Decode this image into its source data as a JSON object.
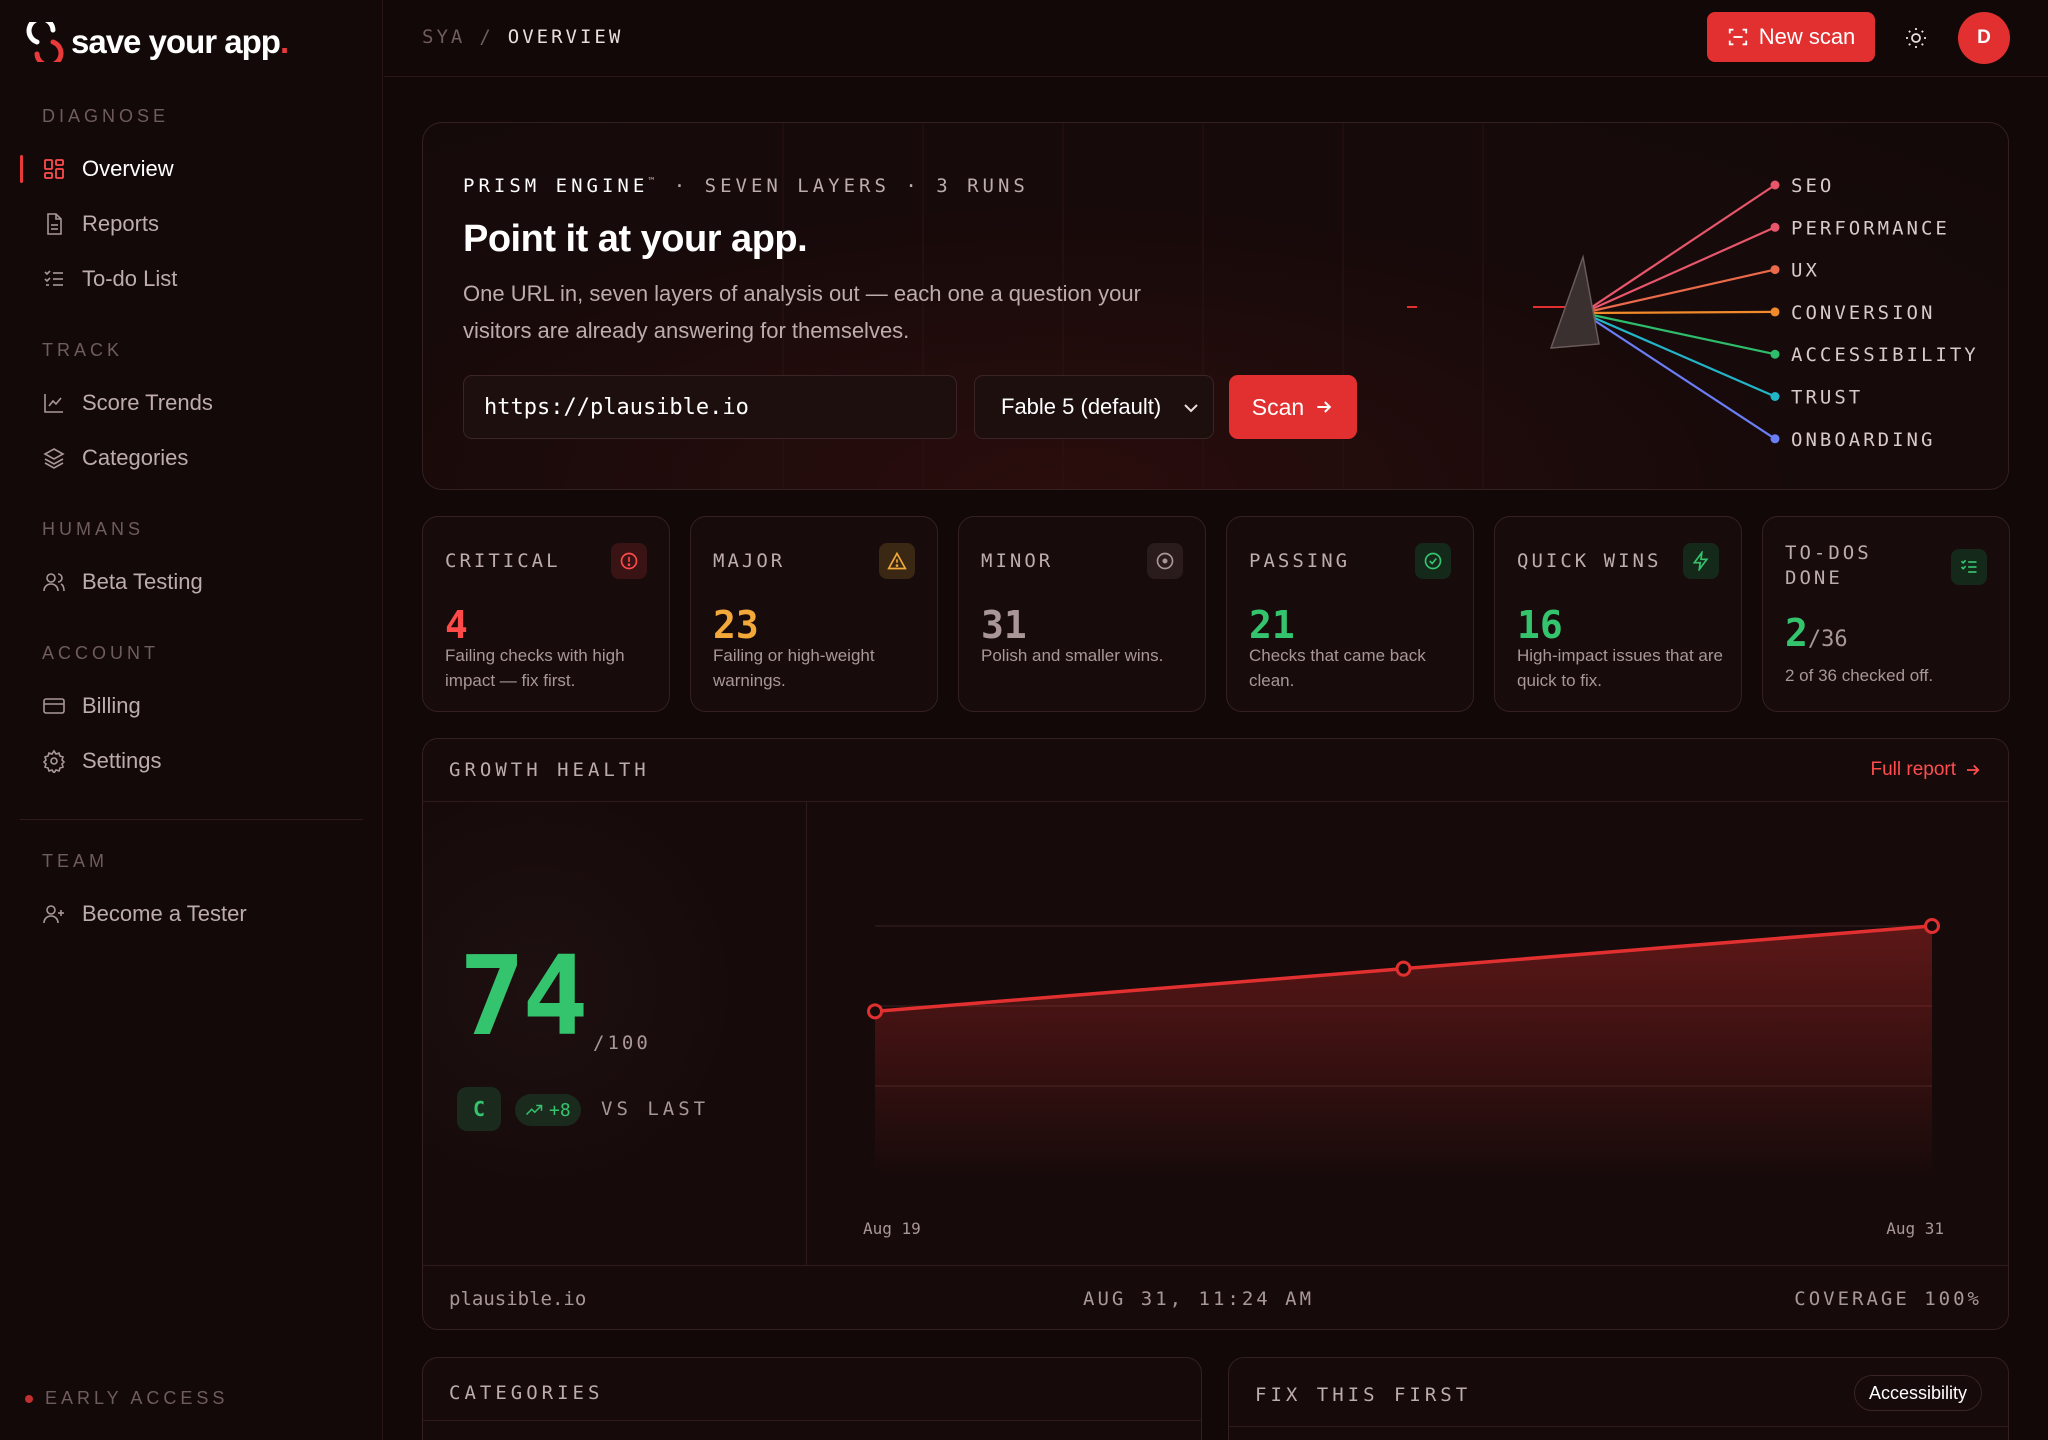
{
  "brand": {
    "name": "save your app",
    "dot": "."
  },
  "sidebar": {
    "sections": [
      {
        "label": "DIAGNOSE",
        "items": [
          {
            "label": "Overview",
            "icon": "grid-icon",
            "active": true
          },
          {
            "label": "Reports",
            "icon": "file-icon"
          },
          {
            "label": "To-do List",
            "icon": "list-check-icon"
          }
        ]
      },
      {
        "label": "TRACK",
        "items": [
          {
            "label": "Score Trends",
            "icon": "chart-line-icon"
          },
          {
            "label": "Categories",
            "icon": "layers-icon"
          }
        ]
      },
      {
        "label": "HUMANS",
        "items": [
          {
            "label": "Beta Testing",
            "icon": "users-icon"
          }
        ]
      },
      {
        "label": "ACCOUNT",
        "items": [
          {
            "label": "Billing",
            "icon": "credit-card-icon"
          },
          {
            "label": "Settings",
            "icon": "gear-icon"
          }
        ]
      },
      {
        "label": "TEAM",
        "items": [
          {
            "label": "Become a Tester",
            "icon": "user-plus-icon"
          }
        ]
      }
    ],
    "footer": "EARLY ACCESS"
  },
  "topbar": {
    "breadcrumb": [
      "SYA",
      "/",
      "OVERVIEW"
    ],
    "new_scan_label": "New scan",
    "avatar_initial": "D"
  },
  "hero": {
    "engine": "PRISM ENGINE",
    "tm": "™",
    "meta": "· SEVEN LAYERS · 3 RUNS",
    "title": "Point it at your app.",
    "subtitle": "One URL in, seven layers of analysis out — each one a question your visitors are already answering for themselves.",
    "url_value": "https://plausible.io",
    "model_selected": "Fable 5 (default)",
    "scan_label": "Scan",
    "layers": [
      {
        "name": "SEO",
        "color": "#e8566c"
      },
      {
        "name": "PERFORMANCE",
        "color": "#e8566c"
      },
      {
        "name": "UX",
        "color": "#ea6a4a"
      },
      {
        "name": "CONVERSION",
        "color": "#f08a2a"
      },
      {
        "name": "ACCESSIBILITY",
        "color": "#2ebd6b"
      },
      {
        "name": "TRUST",
        "color": "#22b5c8"
      },
      {
        "name": "ONBOARDING",
        "color": "#6a7ef5"
      }
    ]
  },
  "metrics": [
    {
      "label": "CRITICAL",
      "value": "4",
      "desc": "Failing checks with high impact — fix first.",
      "color": "#ff4a4a",
      "icon": "alert-circle-icon"
    },
    {
      "label": "MAJOR",
      "value": "23",
      "desc": "Failing or high-weight warnings.",
      "color": "#f3a93a",
      "icon": "warning-icon"
    },
    {
      "label": "MINOR",
      "value": "31",
      "desc": "Polish and smaller wins.",
      "color": "#a99797",
      "icon": "dot-circle-icon"
    },
    {
      "label": "PASSING",
      "value": "21",
      "desc": "Checks that came back clean.",
      "color": "#35c46e",
      "icon": "check-circle-icon"
    },
    {
      "label": "QUICK WINS",
      "value": "16",
      "desc": "High-impact issues that are quick to fix.",
      "color": "#35c46e",
      "icon": "bolt-icon"
    },
    {
      "label_line1": "TO-DOS",
      "label_line2": "DONE",
      "value": "2",
      "value_of": "/36",
      "desc": "2 of 36 checked off.",
      "color": "#35c46e",
      "icon": "list-check-icon"
    }
  ],
  "growth": {
    "title": "GROWTH HEALTH",
    "link_label": "Full report",
    "score": "74",
    "score_of": "/100",
    "grade": "C",
    "delta": "+8",
    "vs_label": "VS LAST",
    "footer_domain": "plausible.io",
    "footer_time": "AUG 31, 11:24 AM",
    "footer_coverage": "COVERAGE 100%"
  },
  "chart_data": {
    "type": "area",
    "x": [
      "Aug 19",
      "",
      "Aug 31"
    ],
    "x_positions": [
      0,
      0.5,
      1
    ],
    "values": [
      66,
      70,
      74
    ],
    "tick_labels": [
      "Aug 19",
      "Aug 31"
    ],
    "ylim": [
      50,
      80
    ],
    "grid": true,
    "color": "#e23030"
  },
  "panels": {
    "categories_title": "CATEGORIES",
    "fix_title": "FIX THIS FIRST",
    "fix_filter": "Accessibility"
  }
}
